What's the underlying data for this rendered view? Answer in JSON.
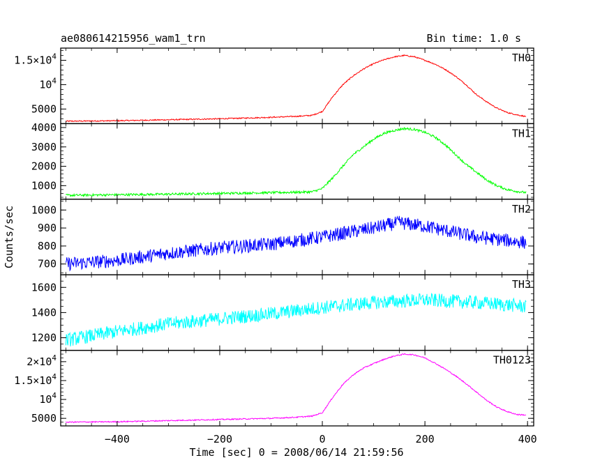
{
  "header": {
    "title": "ae080614215956_wam1_trn",
    "bin_time": "Bin time: 1.0 s"
  },
  "axes": {
    "xlabel": "Time [sec] 0 = 2008/06/14 21:59:56",
    "ylabel": "Counts/sec"
  },
  "chart_data": {
    "type": "line",
    "title": "ae080614215956_wam1_trn",
    "xlabel": "Time [sec] 0 = 2008/06/14 21:59:56",
    "ylabel": "Counts/sec",
    "xlim": [
      -510,
      412
    ],
    "x_ticks": [
      -400,
      -200,
      0,
      200,
      400
    ],
    "x_tick_labels": [
      "−400",
      "−200",
      "0",
      "200",
      "400"
    ],
    "grid": false,
    "series": [
      {
        "name": "TH0",
        "color": "#ff0000",
        "ylim": [
          2000,
          17500
        ],
        "noise": 120,
        "y_ticks": [
          {
            "v": 5000,
            "base": "5000"
          },
          {
            "v": 10000,
            "base": "10",
            "exp": "4"
          },
          {
            "v": 15000,
            "base": "1.5×10",
            "exp": "4"
          }
        ],
        "x": [
          -500,
          -400,
          -300,
          -200,
          -100,
          -50,
          -20,
          0,
          20,
          40,
          60,
          80,
          100,
          120,
          140,
          160,
          180,
          200,
          220,
          240,
          260,
          280,
          300,
          320,
          340,
          360,
          380,
          395
        ],
        "y": [
          2500,
          2600,
          2800,
          3000,
          3300,
          3500,
          3700,
          4500,
          7500,
          10000,
          11800,
          13200,
          14300,
          15100,
          15700,
          16000,
          15700,
          15000,
          14200,
          13100,
          11700,
          10000,
          8000,
          6500,
          5200,
          4300,
          3800,
          3500
        ]
      },
      {
        "name": "TH1",
        "color": "#00ff00",
        "ylim": [
          300,
          4200
        ],
        "noise": 60,
        "y_ticks": [
          {
            "v": 1000,
            "base": "1000"
          },
          {
            "v": 2000,
            "base": "2000"
          },
          {
            "v": 3000,
            "base": "3000"
          },
          {
            "v": 4000,
            "base": "4000"
          }
        ],
        "x": [
          -500,
          -400,
          -300,
          -200,
          -100,
          -50,
          -20,
          0,
          20,
          40,
          60,
          80,
          100,
          120,
          140,
          160,
          180,
          200,
          220,
          240,
          260,
          280,
          300,
          320,
          340,
          360,
          380,
          395
        ],
        "y": [
          500,
          530,
          560,
          600,
          640,
          660,
          680,
          850,
          1400,
          2000,
          2600,
          3000,
          3400,
          3700,
          3850,
          3950,
          3900,
          3750,
          3500,
          3100,
          2600,
          2100,
          1700,
          1300,
          1000,
          800,
          700,
          650
        ]
      },
      {
        "name": "TH2",
        "color": "#0000ff",
        "ylim": [
          640,
          1060
        ],
        "noise": 38,
        "y_ticks": [
          {
            "v": 700,
            "base": "700"
          },
          {
            "v": 800,
            "base": "800"
          },
          {
            "v": 900,
            "base": "900"
          },
          {
            "v": 1000,
            "base": "1000"
          }
        ],
        "x": [
          -500,
          -400,
          -300,
          -200,
          -100,
          0,
          100,
          150,
          200,
          300,
          395
        ],
        "y": [
          700,
          720,
          760,
          790,
          810,
          850,
          900,
          930,
          910,
          850,
          820
        ]
      },
      {
        "name": "TH3",
        "color": "#00ffff",
        "ylim": [
          1100,
          1700
        ],
        "noise": 55,
        "y_ticks": [
          {
            "v": 1200,
            "base": "1200"
          },
          {
            "v": 1400,
            "base": "1400"
          },
          {
            "v": 1600,
            "base": "1600"
          }
        ],
        "x": [
          -500,
          -400,
          -300,
          -200,
          -100,
          0,
          100,
          200,
          300,
          395
        ],
        "y": [
          1180,
          1250,
          1310,
          1350,
          1390,
          1440,
          1480,
          1500,
          1480,
          1450
        ]
      },
      {
        "name": "TH0123",
        "color": "#ff00ff",
        "ylim": [
          3000,
          23000
        ],
        "noise": 150,
        "y_ticks": [
          {
            "v": 5000,
            "base": "5000"
          },
          {
            "v": 10000,
            "base": "10",
            "exp": "4"
          },
          {
            "v": 15000,
            "base": "1.5×10",
            "exp": "4"
          },
          {
            "v": 20000,
            "base": "2×10",
            "exp": "4"
          }
        ],
        "x": [
          -500,
          -400,
          -300,
          -200,
          -100,
          -50,
          -20,
          0,
          20,
          40,
          60,
          80,
          100,
          120,
          140,
          160,
          180,
          200,
          220,
          240,
          260,
          280,
          300,
          320,
          340,
          360,
          380,
          395
        ],
        "y": [
          4000,
          4100,
          4400,
          4700,
          5000,
          5300,
          5600,
          6500,
          10500,
          14000,
          16500,
          18300,
          19500,
          20600,
          21500,
          22000,
          21800,
          21000,
          19600,
          18000,
          16200,
          14200,
          12000,
          9800,
          8000,
          6800,
          6000,
          5900
        ]
      }
    ]
  }
}
